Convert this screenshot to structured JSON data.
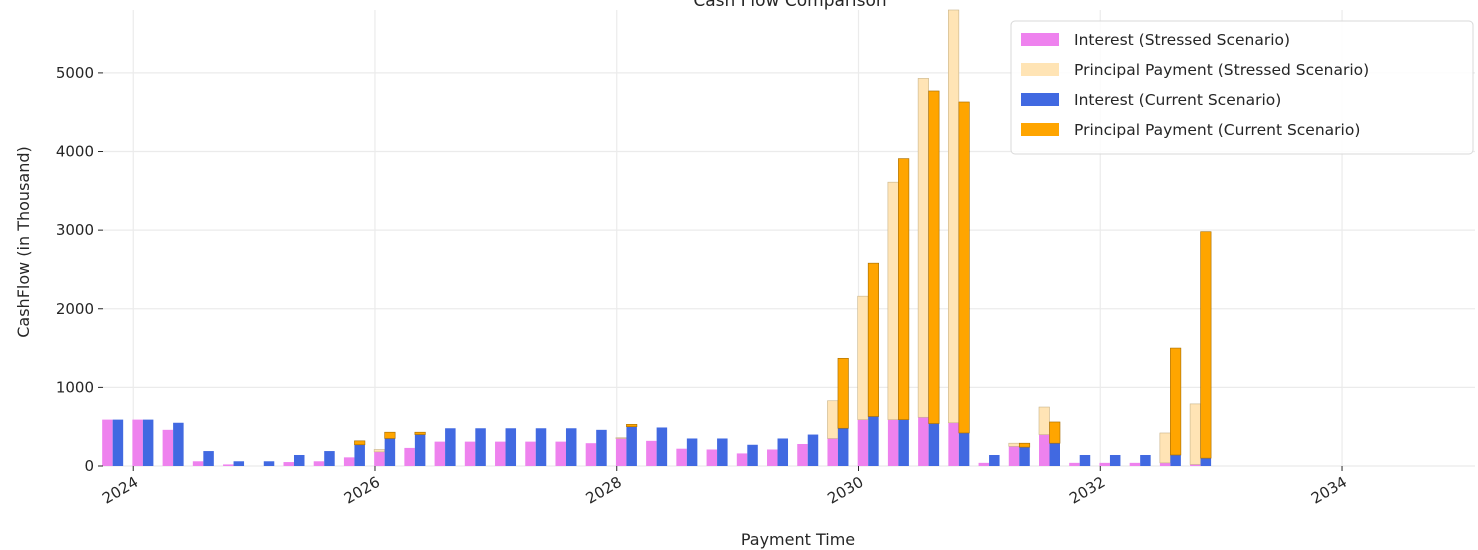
{
  "chart_data": {
    "type": "bar",
    "title": "Cash Flow Comparison",
    "xlabel": "Payment Time",
    "ylabel": "CashFlow (in Thousand)",
    "xlim": [
      2023.75,
      2035.1
    ],
    "ylim": [
      0,
      5800
    ],
    "grid": true,
    "legend_position": "top-right",
    "xticks": [
      2024,
      2026,
      2028,
      2030,
      2032,
      2034
    ],
    "yticks": [
      0,
      1000,
      2000,
      3000,
      4000,
      5000
    ],
    "periods": [
      2023.83,
      2024.08,
      2024.33,
      2024.58,
      2024.83,
      2025.08,
      2025.33,
      2025.58,
      2025.83,
      2026.08,
      2026.33,
      2026.58,
      2026.83,
      2027.08,
      2027.33,
      2027.58,
      2027.83,
      2028.08,
      2028.33,
      2028.58,
      2028.83,
      2029.08,
      2029.33,
      2029.58,
      2029.83,
      2030.08,
      2030.33,
      2030.58,
      2030.83,
      2031.08,
      2031.33,
      2031.58,
      2031.83,
      2032.08,
      2032.33,
      2032.58,
      2032.83
    ],
    "series": [
      {
        "name": "Interest (Stressed Scenario)",
        "color": "#ee82ee",
        "values": [
          590,
          590,
          460,
          60,
          20,
          0,
          50,
          60,
          110,
          180,
          230,
          310,
          310,
          310,
          310,
          310,
          290,
          350,
          320,
          220,
          210,
          160,
          210,
          280,
          350,
          590,
          590,
          620,
          550,
          40,
          250,
          400,
          40,
          40,
          40,
          40,
          20
        ]
      },
      {
        "name": "Principal Payment (Stressed Scenario)",
        "color": "#ffe4b5",
        "values": [
          0,
          0,
          0,
          0,
          0,
          0,
          0,
          0,
          0,
          30,
          0,
          0,
          0,
          0,
          0,
          0,
          0,
          10,
          0,
          0,
          0,
          0,
          0,
          0,
          480,
          1570,
          3020,
          4310,
          5250,
          0,
          40,
          350,
          0,
          0,
          0,
          380,
          770
        ]
      },
      {
        "name": "Interest (Current Scenario)",
        "color": "#4169e1",
        "values": [
          590,
          590,
          550,
          190,
          60,
          60,
          140,
          190,
          270,
          350,
          400,
          480,
          480,
          480,
          480,
          480,
          460,
          500,
          490,
          350,
          350,
          270,
          350,
          400,
          480,
          630,
          590,
          540,
          420,
          140,
          240,
          290,
          140,
          140,
          140,
          140,
          100
        ]
      },
      {
        "name": "Principal Payment (Current Scenario)",
        "color": "#ffa500",
        "values": [
          0,
          0,
          0,
          0,
          0,
          0,
          0,
          0,
          50,
          80,
          30,
          0,
          0,
          0,
          0,
          0,
          0,
          30,
          0,
          0,
          0,
          0,
          0,
          0,
          890,
          1950,
          3320,
          4230,
          4210,
          0,
          50,
          270,
          0,
          0,
          0,
          1360,
          2880
        ]
      }
    ]
  }
}
